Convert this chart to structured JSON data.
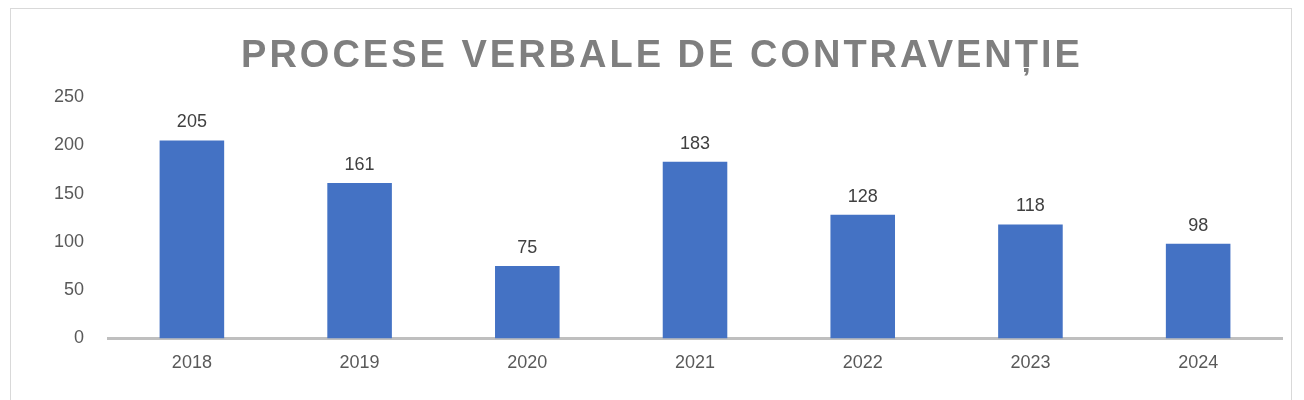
{
  "chart_data": {
    "type": "bar",
    "title": "PROCESE VERBALE DE CONTRAVENȚIE",
    "categories": [
      "2018",
      "2019",
      "2020",
      "2021",
      "2022",
      "2023",
      "2024"
    ],
    "values": [
      205,
      161,
      75,
      183,
      128,
      118,
      98
    ],
    "color": "#4472c4",
    "ylim": [
      0,
      250
    ],
    "yticks": [
      0,
      50,
      100,
      150,
      200,
      250
    ],
    "data_labels": true
  }
}
